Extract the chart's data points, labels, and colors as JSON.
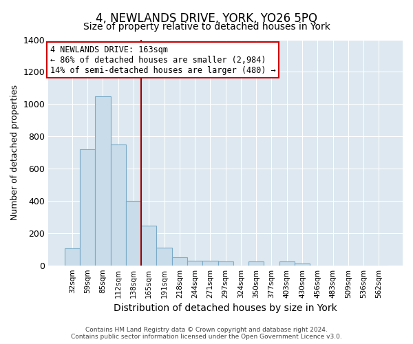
{
  "title": "4, NEWLANDS DRIVE, YORK, YO26 5PQ",
  "subtitle": "Size of property relative to detached houses in York",
  "xlabel": "Distribution of detached houses by size in York",
  "ylabel": "Number of detached properties",
  "categories": [
    "32sqm",
    "59sqm",
    "85sqm",
    "112sqm",
    "138sqm",
    "165sqm",
    "191sqm",
    "218sqm",
    "244sqm",
    "271sqm",
    "297sqm",
    "324sqm",
    "350sqm",
    "377sqm",
    "403sqm",
    "430sqm",
    "456sqm",
    "483sqm",
    "509sqm",
    "536sqm",
    "562sqm"
  ],
  "values": [
    105,
    720,
    1050,
    750,
    400,
    245,
    110,
    48,
    28,
    28,
    25,
    0,
    25,
    0,
    25,
    10,
    0,
    0,
    0,
    0,
    0
  ],
  "bar_color": "#c9dcea",
  "bar_edge_color": "#7aaac8",
  "vline_color": "#990000",
  "annotation_text": "4 NEWLANDS DRIVE: 163sqm\n← 86% of detached houses are smaller (2,984)\n14% of semi-detached houses are larger (480) →",
  "annotation_box_color": "#ffffff",
  "annotation_box_edge_color": "#cc0000",
  "ylim": [
    0,
    1400
  ],
  "yticks": [
    0,
    200,
    400,
    600,
    800,
    1000,
    1200,
    1400
  ],
  "bg_color": "#ffffff",
  "plot_bg_color": "#dde8f0",
  "grid_color": "#ffffff",
  "footer": "Contains HM Land Registry data © Crown copyright and database right 2024.\nContains public sector information licensed under the Open Government Licence v3.0.",
  "title_fontsize": 12,
  "subtitle_fontsize": 10,
  "xlabel_fontsize": 10,
  "ylabel_fontsize": 9,
  "annot_fontsize": 8.5
}
